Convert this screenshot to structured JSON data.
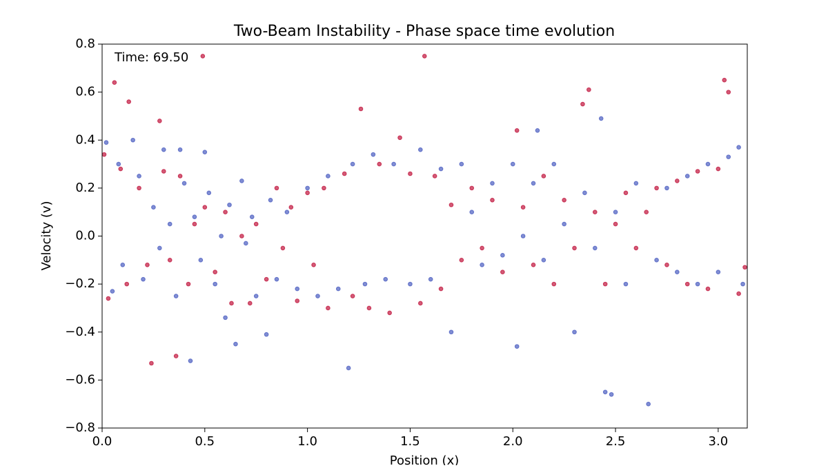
{
  "chart_data": {
    "type": "scatter",
    "title": "Two-Beam Instability - Phase space time evolution",
    "annotation": "Time: 69.50",
    "x_label": "Position (x)",
    "y_label": "Velocity (v)",
    "xlim": [
      0,
      3.14159
    ],
    "ylim": [
      -0.8,
      0.8
    ],
    "xticks": [
      {
        "value": 0,
        "label": "0.0"
      },
      0.5,
      {
        "value": 1,
        "label": "1.0"
      },
      1.5,
      {
        "value": 2,
        "label": "2.0"
      },
      2.5,
      {
        "value": 3,
        "label": "3.0"
      }
    ],
    "yticks": [
      {
        "value": -0.8,
        "label": "−0.8"
      },
      {
        "value": -0.6,
        "label": "−0.6"
      },
      {
        "value": -0.4,
        "label": "−0.4"
      },
      {
        "value": -0.2,
        "label": "−0.2"
      },
      {
        "value": 0,
        "label": "0.0"
      },
      0.2,
      0.4,
      0.6,
      0.8
    ],
    "series": [
      {
        "color": "#4a5cc0",
        "x": [
          0.02,
          0.05,
          0.08,
          0.1,
          0.15,
          0.18,
          0.2,
          0.25,
          0.28,
          0.3,
          0.33,
          0.36,
          0.38,
          0.4,
          0.43,
          0.45,
          0.48,
          0.5,
          0.52,
          0.55,
          0.58,
          0.6,
          0.62,
          0.65,
          0.68,
          0.7,
          0.73,
          0.75,
          0.8,
          0.82,
          0.85,
          0.9,
          0.95,
          1.0,
          1.05,
          1.1,
          1.15,
          1.2,
          1.22,
          1.28,
          1.32,
          1.38,
          1.42,
          1.5,
          1.55,
          1.6,
          1.65,
          1.7,
          1.75,
          1.8,
          1.85,
          1.9,
          1.95,
          2.0,
          2.02,
          2.05,
          2.1,
          2.12,
          2.15,
          2.2,
          2.25,
          2.3,
          2.35,
          2.4,
          2.43,
          2.45,
          2.48,
          2.5,
          2.55,
          2.6,
          2.66,
          2.7,
          2.75,
          2.8,
          2.85,
          2.9,
          2.95,
          3.0,
          3.05,
          3.1,
          3.12
        ],
        "values": [
          0.39,
          -0.23,
          0.3,
          -0.12,
          0.4,
          0.25,
          -0.18,
          0.12,
          -0.05,
          0.36,
          0.05,
          -0.25,
          0.36,
          0.22,
          -0.52,
          0.08,
          -0.1,
          0.35,
          0.18,
          -0.2,
          0.0,
          -0.34,
          0.13,
          -0.45,
          0.23,
          -0.03,
          0.08,
          -0.25,
          -0.41,
          0.15,
          -0.18,
          0.1,
          -0.22,
          0.2,
          -0.25,
          0.25,
          -0.22,
          -0.55,
          0.3,
          -0.2,
          0.34,
          -0.18,
          0.3,
          -0.2,
          0.36,
          -0.18,
          0.28,
          -0.4,
          0.3,
          0.1,
          -0.12,
          0.22,
          -0.08,
          0.3,
          -0.46,
          0.0,
          0.22,
          0.44,
          -0.1,
          0.3,
          0.05,
          -0.4,
          0.18,
          -0.05,
          0.49,
          -0.65,
          -0.66,
          0.1,
          -0.2,
          0.22,
          -0.7,
          -0.1,
          0.2,
          -0.15,
          0.25,
          -0.2,
          0.3,
          -0.15,
          0.33,
          0.37,
          -0.2
        ]
      },
      {
        "color": "#c0143c",
        "x": [
          0.01,
          0.03,
          0.06,
          0.09,
          0.12,
          0.13,
          0.18,
          0.22,
          0.24,
          0.28,
          0.3,
          0.33,
          0.36,
          0.38,
          0.42,
          0.45,
          0.49,
          0.5,
          0.55,
          0.6,
          0.63,
          0.68,
          0.72,
          0.75,
          0.8,
          0.85,
          0.88,
          0.92,
          0.95,
          1.0,
          1.03,
          1.08,
          1.1,
          1.18,
          1.22,
          1.26,
          1.3,
          1.35,
          1.4,
          1.45,
          1.5,
          1.55,
          1.57,
          1.62,
          1.65,
          1.7,
          1.75,
          1.8,
          1.85,
          1.9,
          1.95,
          2.02,
          2.05,
          2.1,
          2.15,
          2.2,
          2.25,
          2.3,
          2.34,
          2.37,
          2.4,
          2.45,
          2.5,
          2.55,
          2.6,
          2.65,
          2.7,
          2.75,
          2.8,
          2.85,
          2.9,
          2.95,
          3.0,
          3.03,
          3.05,
          3.1,
          3.13
        ],
        "values": [
          0.34,
          -0.26,
          0.64,
          0.28,
          -0.2,
          0.56,
          0.2,
          -0.12,
          -0.53,
          0.48,
          0.27,
          -0.1,
          -0.5,
          0.25,
          -0.2,
          0.05,
          0.75,
          0.12,
          -0.15,
          0.1,
          -0.28,
          0.0,
          -0.28,
          0.05,
          -0.18,
          0.2,
          -0.05,
          0.12,
          -0.27,
          0.18,
          -0.12,
          0.2,
          -0.3,
          0.26,
          -0.25,
          0.53,
          -0.3,
          0.3,
          -0.32,
          0.41,
          0.26,
          -0.28,
          0.75,
          0.25,
          -0.22,
          0.13,
          -0.1,
          0.2,
          -0.05,
          0.15,
          -0.15,
          0.44,
          0.12,
          -0.12,
          0.25,
          -0.2,
          0.15,
          -0.05,
          0.55,
          0.61,
          0.1,
          -0.2,
          0.05,
          0.18,
          -0.05,
          0.1,
          0.2,
          -0.12,
          0.23,
          -0.2,
          0.27,
          -0.22,
          0.28,
          0.65,
          0.6,
          -0.24,
          -0.13
        ]
      }
    ]
  }
}
